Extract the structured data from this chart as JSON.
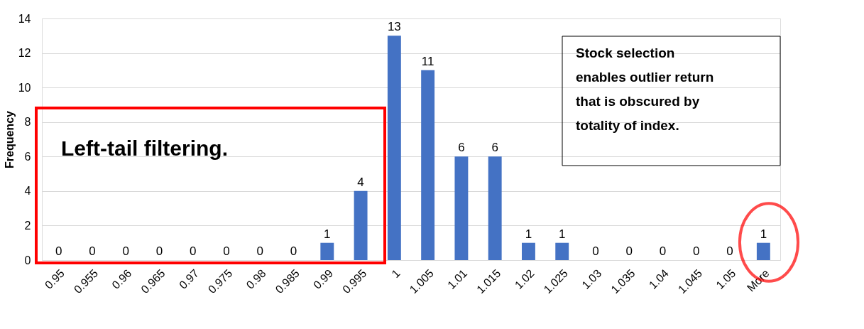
{
  "chart_data": {
    "type": "bar",
    "ylabel": "Frequency",
    "categories": [
      "0.95",
      "0.955",
      "0.96",
      "0.965",
      "0.97",
      "0.975",
      "0.98",
      "0.985",
      "0.99",
      "0.995",
      "1",
      "1.005",
      "1.01",
      "1.015",
      "1.02",
      "1.025",
      "1.03",
      "1.035",
      "1.04",
      "1.045",
      "1.05",
      "More"
    ],
    "values": [
      0,
      0,
      0,
      0,
      0,
      0,
      0,
      0,
      1,
      4,
      13,
      11,
      6,
      6,
      1,
      1,
      0,
      0,
      0,
      0,
      0,
      1
    ],
    "color": "#4472c4",
    "ylim": [
      0,
      14
    ],
    "yticks": [
      0,
      2,
      4,
      6,
      8,
      10,
      12,
      14
    ],
    "grid": "y",
    "data_labels": true,
    "annotations": [
      "Left-tail filtering.",
      "Stock selection\nenables outlier return\nthat is  obscured by\ntotality of index."
    ]
  }
}
